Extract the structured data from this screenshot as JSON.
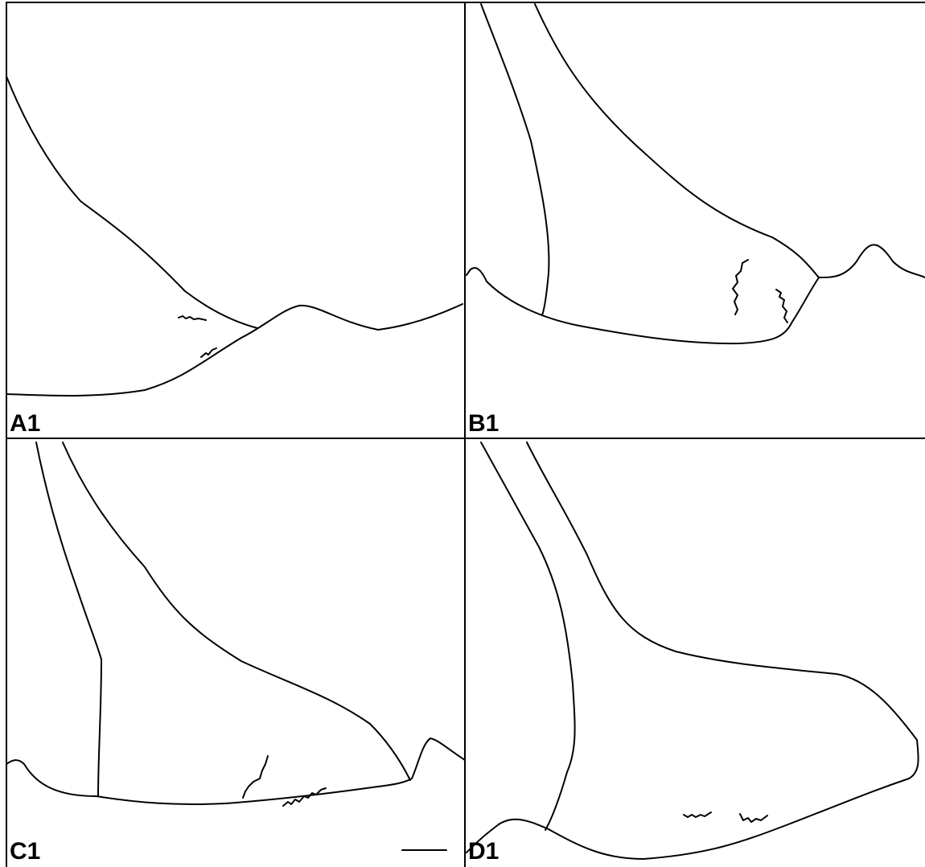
{
  "panels": [
    {
      "label": "A1"
    },
    {
      "label": "B1"
    },
    {
      "label": "C1"
    },
    {
      "label": "D1"
    }
  ]
}
